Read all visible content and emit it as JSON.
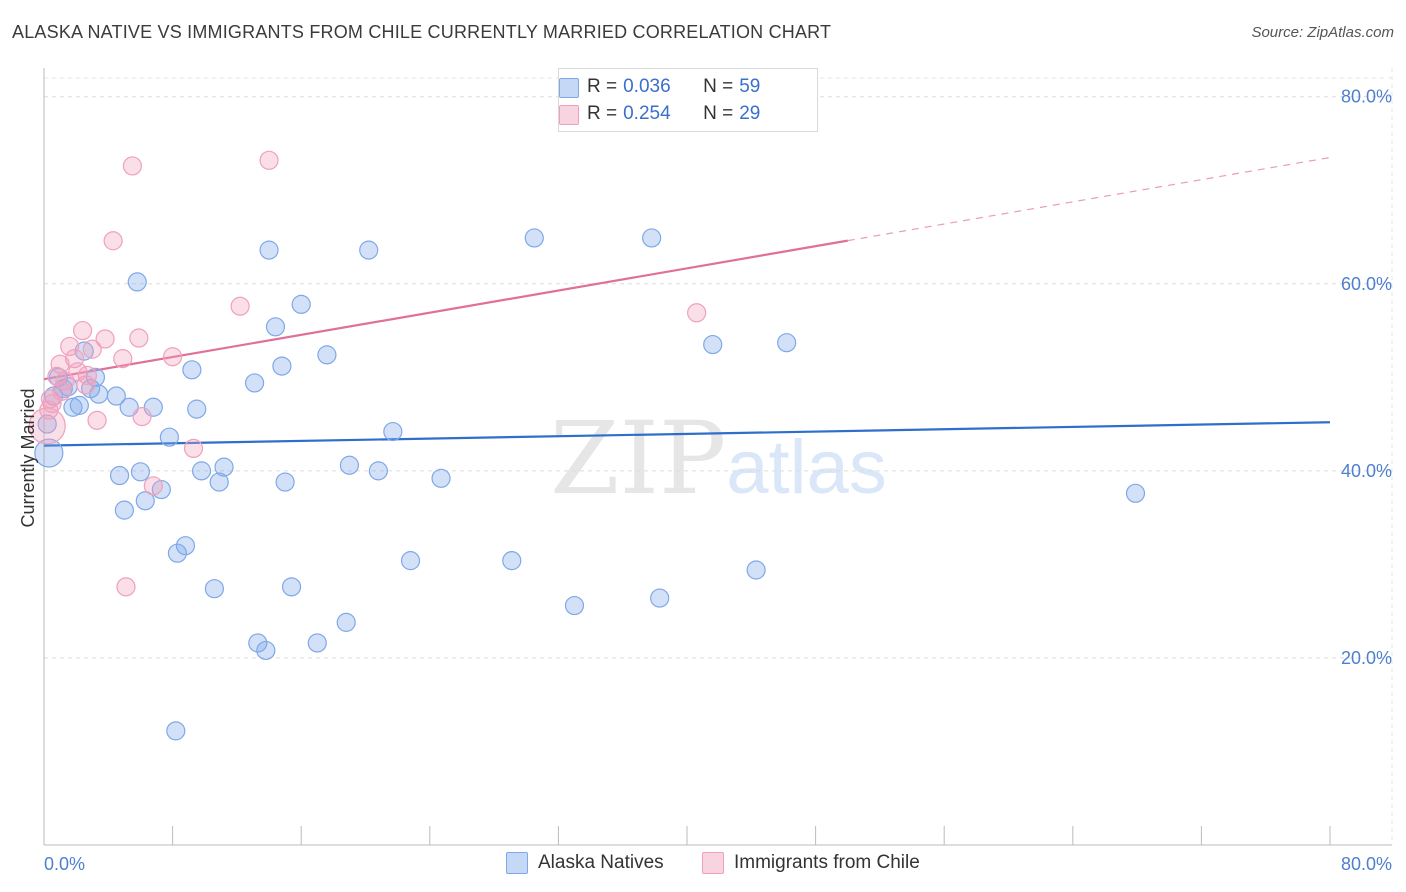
{
  "header": {
    "title": "ALASKA NATIVE VS IMMIGRANTS FROM CHILE CURRENTLY MARRIED CORRELATION CHART",
    "source": "Source: ZipAtlas.com"
  },
  "watermark": {
    "zip": "ZIP",
    "atlas": "atlas"
  },
  "legend": {
    "rows": [
      {
        "r_label": "R =",
        "r_value": "0.036",
        "n_label": "N =",
        "n_value": "59",
        "color": "#7fa8e8"
      },
      {
        "r_label": "R =",
        "r_value": "0.254",
        "n_label": "N =",
        "n_value": "29",
        "color": "#f0a0bc"
      }
    ]
  },
  "bottom_legend": {
    "items": [
      {
        "label": "Alaska Natives",
        "color": "#7fa8e8"
      },
      {
        "label": "Immigrants from Chile",
        "color": "#f0a0bc"
      }
    ]
  },
  "chart_data": {
    "type": "scatter",
    "title": "ALASKA NATIVE VS IMMIGRANTS FROM CHILE CURRENTLY MARRIED CORRELATION CHART",
    "xlabel": "",
    "ylabel": "Currently Married",
    "xlim": [
      0,
      80
    ],
    "ylim": [
      0,
      82
    ],
    "x_tick_labels": [
      "0.0%",
      "80.0%"
    ],
    "y_ticks": [
      20,
      40,
      60,
      80
    ],
    "y_tick_labels": [
      "20.0%",
      "40.0%",
      "60.0%",
      "80.0%"
    ],
    "grid": true,
    "legend_position": "top-center",
    "series": [
      {
        "name": "Alaska Natives",
        "color": "#7fa8e8",
        "line_color": "#2f6fcc",
        "trend": {
          "x": [
            0,
            80
          ],
          "y": [
            42.7,
            45.2
          ],
          "dashed_from": null
        },
        "points": [
          [
            0.3,
            41.9
          ],
          [
            0.6,
            48.0
          ],
          [
            0.9,
            50.0
          ],
          [
            1.2,
            48.8
          ],
          [
            1.5,
            49.0
          ],
          [
            1.8,
            46.8
          ],
          [
            2.2,
            47.0
          ],
          [
            2.5,
            52.8
          ],
          [
            2.9,
            48.8
          ],
          [
            3.2,
            50.0
          ],
          [
            3.4,
            48.2
          ],
          [
            4.5,
            48.0
          ],
          [
            5.3,
            46.8
          ],
          [
            4.7,
            39.5
          ],
          [
            5.0,
            35.8
          ],
          [
            5.8,
            60.2
          ],
          [
            6.0,
            39.9
          ],
          [
            6.3,
            36.8
          ],
          [
            6.8,
            46.8
          ],
          [
            7.3,
            38.0
          ],
          [
            7.8,
            43.6
          ],
          [
            8.2,
            12.2
          ],
          [
            8.3,
            31.2
          ],
          [
            8.8,
            32.0
          ],
          [
            9.2,
            50.8
          ],
          [
            9.5,
            46.6
          ],
          [
            9.8,
            40.0
          ],
          [
            10.6,
            27.4
          ],
          [
            10.9,
            38.8
          ],
          [
            11.2,
            40.4
          ],
          [
            13.1,
            49.4
          ],
          [
            13.3,
            21.6
          ],
          [
            13.8,
            20.8
          ],
          [
            14.0,
            63.6
          ],
          [
            14.4,
            55.4
          ],
          [
            14.8,
            51.2
          ],
          [
            15.0,
            38.8
          ],
          [
            15.4,
            27.6
          ],
          [
            16.0,
            57.8
          ],
          [
            17.0,
            21.6
          ],
          [
            17.6,
            52.4
          ],
          [
            18.8,
            23.8
          ],
          [
            19.0,
            40.6
          ],
          [
            20.2,
            63.6
          ],
          [
            20.8,
            40.0
          ],
          [
            21.7,
            44.2
          ],
          [
            22.8,
            30.4
          ],
          [
            24.7,
            39.2
          ],
          [
            29.1,
            30.4
          ],
          [
            30.5,
            64.9
          ],
          [
            33.0,
            25.6
          ],
          [
            37.8,
            64.9
          ],
          [
            38.3,
            26.4
          ],
          [
            41.6,
            53.5
          ],
          [
            44.3,
            29.4
          ],
          [
            46.2,
            53.7
          ],
          [
            44.7,
            77.5
          ],
          [
            67.9,
            37.6
          ],
          [
            0.2,
            45.0
          ]
        ],
        "sizes": [
          14,
          9,
          9,
          9,
          9,
          9,
          9,
          9,
          9,
          9,
          9,
          9,
          9,
          9,
          9,
          9,
          9,
          9,
          9,
          9,
          9,
          9,
          9,
          9,
          9,
          9,
          9,
          9,
          9,
          9,
          9,
          9,
          9,
          9,
          9,
          9,
          9,
          9,
          9,
          9,
          9,
          9,
          9,
          9,
          9,
          9,
          9,
          9,
          9,
          9,
          9,
          9,
          9,
          9,
          9,
          9,
          9,
          9,
          9
        ]
      },
      {
        "name": "Immigrants from Chile",
        "color": "#f0a0bc",
        "line_color": "#e0709a",
        "trend": {
          "x": [
            0,
            80
          ],
          "y": [
            49.8,
            73.5
          ],
          "dashed_from": 50
        },
        "points": [
          [
            0.2,
            44.8
          ],
          [
            0.5,
            47.2
          ],
          [
            0.8,
            50.1
          ],
          [
            1.0,
            51.4
          ],
          [
            1.3,
            49.6
          ],
          [
            1.6,
            53.3
          ],
          [
            1.9,
            52.0
          ],
          [
            2.1,
            50.6
          ],
          [
            2.4,
            55.0
          ],
          [
            2.6,
            49.2
          ],
          [
            3.0,
            53.0
          ],
          [
            3.3,
            45.4
          ],
          [
            3.8,
            54.1
          ],
          [
            4.3,
            64.6
          ],
          [
            4.9,
            52.0
          ],
          [
            5.1,
            27.6
          ],
          [
            5.5,
            72.6
          ],
          [
            5.9,
            54.2
          ],
          [
            6.1,
            45.8
          ],
          [
            6.8,
            38.4
          ],
          [
            8.0,
            52.2
          ],
          [
            9.3,
            42.4
          ],
          [
            12.2,
            57.6
          ],
          [
            14.0,
            73.2
          ],
          [
            40.6,
            56.9
          ],
          [
            0.4,
            47.7
          ],
          [
            1.1,
            48.5
          ],
          [
            2.7,
            50.2
          ],
          [
            0.3,
            46.5
          ]
        ],
        "sizes": [
          18,
          9,
          9,
          9,
          9,
          9,
          9,
          9,
          9,
          9,
          9,
          9,
          9,
          9,
          9,
          9,
          9,
          9,
          9,
          9,
          9,
          9,
          9,
          9,
          9,
          9,
          9,
          9,
          9
        ]
      }
    ]
  }
}
